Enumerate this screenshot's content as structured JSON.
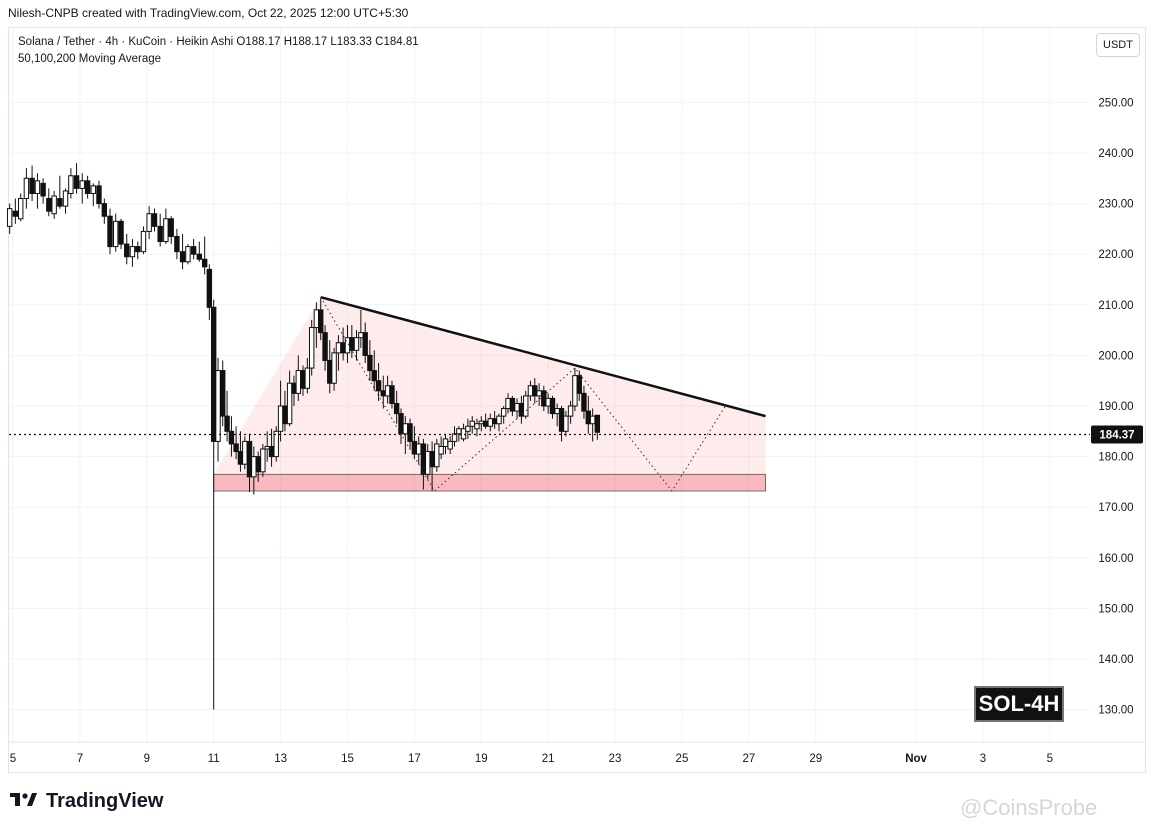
{
  "header": {
    "created_by": "Nilesh-CNPB created with TradingView.com, Oct 22, 2025 12:00 UTC+5:30"
  },
  "legend": {
    "line1": "Solana / Tether · 4h · KuCoin · Heikin Ashi  O188.17  H188.17  L183.33  C184.81",
    "line2": "50,100,200 Moving Average"
  },
  "currency_button": "USDT",
  "badge": "SOL-4H",
  "brand": "TradingView",
  "watermark": "@CoinsProbe",
  "chart_data": {
    "type": "candlestick",
    "symbol": "Solana / Tether",
    "interval": "4h",
    "exchange": "KuCoin",
    "candle_style": "Heikin Ashi",
    "ohlc": {
      "open": 188.17,
      "high": 188.17,
      "low": 183.33,
      "close": 184.81
    },
    "last_price": 184.37,
    "last_price_label": "184.37",
    "y_ticks": [
      "130.00",
      "140.00",
      "150.00",
      "160.00",
      "170.00",
      "180.00",
      "190.00",
      "200.00",
      "210.00",
      "220.00",
      "230.00",
      "240.00",
      "250.00"
    ],
    "y_tick_values": [
      130,
      140,
      150,
      160,
      170,
      180,
      190,
      200,
      210,
      220,
      230,
      240,
      250
    ],
    "ylim": [
      123.6,
      264.7
    ],
    "x_ticks": [
      "5",
      "7",
      "9",
      "11",
      "13",
      "15",
      "17",
      "19",
      "21",
      "23",
      "25",
      "27",
      "29",
      "Nov",
      "3",
      "5"
    ],
    "x_tick_days": [
      5,
      7,
      9,
      11,
      13,
      15,
      17,
      19,
      21,
      23,
      25,
      27,
      29,
      32,
      34,
      36
    ],
    "xlim_days": [
      4.88,
      37.2
    ],
    "grid": true,
    "descending_triangle": {
      "resistance_start": {
        "day": 14.2,
        "price": 211.5
      },
      "resistance_end": {
        "day": 27.5,
        "price": 188.0
      },
      "support_zone": {
        "day_start": 11.0,
        "day_end": 27.5,
        "price_top": 176.5,
        "price_bottom": 173.2
      },
      "left_edge": {
        "day": 11.0,
        "price": 176.5
      }
    },
    "projection_path": [
      {
        "day": 14.2,
        "price": 211.5
      },
      {
        "day": 17.6,
        "price": 173.2
      },
      {
        "day": 21.8,
        "price": 197.5
      },
      {
        "day": 24.7,
        "price": 173.2
      },
      {
        "day": 26.3,
        "price": 190.0
      }
    ],
    "candles": [
      {
        "t": 4.9,
        "o": 225.5,
        "h": 230.0,
        "l": 224.0,
        "c": 229.0
      },
      {
        "t": 5.07,
        "o": 228.5,
        "h": 231.0,
        "l": 226.0,
        "c": 227.5
      },
      {
        "t": 5.23,
        "o": 227.0,
        "h": 232.0,
        "l": 226.5,
        "c": 231.0
      },
      {
        "t": 5.4,
        "o": 231.0,
        "h": 237.0,
        "l": 229.0,
        "c": 235.0
      },
      {
        "t": 5.57,
        "o": 235.0,
        "h": 237.5,
        "l": 230.5,
        "c": 232.0
      },
      {
        "t": 5.73,
        "o": 232.0,
        "h": 236.0,
        "l": 229.0,
        "c": 234.5
      },
      {
        "t": 5.9,
        "o": 234.0,
        "h": 235.0,
        "l": 230.0,
        "c": 231.5
      },
      {
        "t": 6.07,
        "o": 231.0,
        "h": 233.0,
        "l": 227.5,
        "c": 228.5
      },
      {
        "t": 6.23,
        "o": 228.0,
        "h": 232.5,
        "l": 227.0,
        "c": 231.5
      },
      {
        "t": 6.4,
        "o": 231.0,
        "h": 235.5,
        "l": 229.0,
        "c": 229.5
      },
      {
        "t": 6.57,
        "o": 229.5,
        "h": 233.0,
        "l": 228.0,
        "c": 232.5
      },
      {
        "t": 6.73,
        "o": 232.0,
        "h": 237.0,
        "l": 231.0,
        "c": 235.5
      },
      {
        "t": 6.9,
        "o": 235.5,
        "h": 238.0,
        "l": 232.0,
        "c": 233.0
      },
      {
        "t": 7.07,
        "o": 233.0,
        "h": 236.0,
        "l": 230.0,
        "c": 234.5
      },
      {
        "t": 7.23,
        "o": 234.5,
        "h": 235.5,
        "l": 231.0,
        "c": 232.0
      },
      {
        "t": 7.4,
        "o": 232.0,
        "h": 234.0,
        "l": 229.5,
        "c": 233.5
      },
      {
        "t": 7.57,
        "o": 233.5,
        "h": 234.5,
        "l": 229.0,
        "c": 230.0
      },
      {
        "t": 7.73,
        "o": 230.0,
        "h": 231.0,
        "l": 226.0,
        "c": 227.5
      },
      {
        "t": 7.9,
        "o": 227.5,
        "h": 229.0,
        "l": 220.0,
        "c": 221.5
      },
      {
        "t": 8.07,
        "o": 221.5,
        "h": 228.0,
        "l": 220.5,
        "c": 226.5
      },
      {
        "t": 8.23,
        "o": 226.5,
        "h": 227.0,
        "l": 221.0,
        "c": 222.0
      },
      {
        "t": 8.4,
        "o": 222.0,
        "h": 224.0,
        "l": 218.0,
        "c": 219.5
      },
      {
        "t": 8.57,
        "o": 219.5,
        "h": 223.0,
        "l": 217.5,
        "c": 221.5
      },
      {
        "t": 8.73,
        "o": 221.5,
        "h": 222.5,
        "l": 219.0,
        "c": 220.5
      },
      {
        "t": 8.9,
        "o": 220.5,
        "h": 225.5,
        "l": 220.0,
        "c": 224.5
      },
      {
        "t": 9.07,
        "o": 224.5,
        "h": 229.5,
        "l": 223.0,
        "c": 228.0
      },
      {
        "t": 9.23,
        "o": 228.0,
        "h": 229.0,
        "l": 224.5,
        "c": 225.5
      },
      {
        "t": 9.4,
        "o": 225.5,
        "h": 228.0,
        "l": 221.5,
        "c": 222.5
      },
      {
        "t": 9.57,
        "o": 222.5,
        "h": 229.0,
        "l": 222.0,
        "c": 227.0
      },
      {
        "t": 9.73,
        "o": 227.0,
        "h": 227.5,
        "l": 222.0,
        "c": 223.5
      },
      {
        "t": 9.9,
        "o": 223.5,
        "h": 225.0,
        "l": 219.0,
        "c": 220.5
      },
      {
        "t": 10.07,
        "o": 220.5,
        "h": 224.0,
        "l": 217.0,
        "c": 218.5
      },
      {
        "t": 10.23,
        "o": 218.5,
        "h": 222.0,
        "l": 218.0,
        "c": 221.5
      },
      {
        "t": 10.4,
        "o": 221.5,
        "h": 223.0,
        "l": 219.0,
        "c": 220.0
      },
      {
        "t": 10.57,
        "o": 220.0,
        "h": 222.5,
        "l": 218.5,
        "c": 219.0
      },
      {
        "t": 10.73,
        "o": 219.0,
        "h": 223.5,
        "l": 216.0,
        "c": 217.5
      },
      {
        "t": 10.87,
        "o": 217.0,
        "h": 218.0,
        "l": 207.0,
        "c": 209.5
      },
      {
        "t": 11.0,
        "o": 209.5,
        "h": 211.0,
        "l": 130.0,
        "c": 183.0
      },
      {
        "t": 11.13,
        "o": 183.0,
        "h": 199.5,
        "l": 179.0,
        "c": 197.0
      },
      {
        "t": 11.27,
        "o": 197.0,
        "h": 199.0,
        "l": 186.0,
        "c": 188.0
      },
      {
        "t": 11.4,
        "o": 188.0,
        "h": 193.0,
        "l": 183.0,
        "c": 185.0
      },
      {
        "t": 11.53,
        "o": 185.0,
        "h": 188.0,
        "l": 180.0,
        "c": 182.5
      },
      {
        "t": 11.67,
        "o": 182.5,
        "h": 186.0,
        "l": 179.5,
        "c": 181.0
      },
      {
        "t": 11.8,
        "o": 181.0,
        "h": 185.0,
        "l": 177.0,
        "c": 178.5
      },
      {
        "t": 11.93,
        "o": 178.5,
        "h": 184.0,
        "l": 177.5,
        "c": 183.0
      },
      {
        "t": 12.07,
        "o": 183.0,
        "h": 184.5,
        "l": 173.0,
        "c": 176.0
      },
      {
        "t": 12.2,
        "o": 176.0,
        "h": 182.0,
        "l": 172.5,
        "c": 180.0
      },
      {
        "t": 12.33,
        "o": 180.0,
        "h": 181.0,
        "l": 175.0,
        "c": 177.0
      },
      {
        "t": 12.47,
        "o": 177.0,
        "h": 182.5,
        "l": 176.0,
        "c": 181.5
      },
      {
        "t": 12.6,
        "o": 181.5,
        "h": 185.0,
        "l": 179.0,
        "c": 182.0
      },
      {
        "t": 12.73,
        "o": 182.0,
        "h": 185.5,
        "l": 178.0,
        "c": 180.0
      },
      {
        "t": 12.87,
        "o": 180.0,
        "h": 186.0,
        "l": 179.0,
        "c": 185.0
      },
      {
        "t": 13.0,
        "o": 185.0,
        "h": 195.0,
        "l": 183.0,
        "c": 190.0
      },
      {
        "t": 13.13,
        "o": 190.0,
        "h": 193.0,
        "l": 185.0,
        "c": 186.5
      },
      {
        "t": 13.27,
        "o": 186.5,
        "h": 197.0,
        "l": 186.0,
        "c": 194.5
      },
      {
        "t": 13.4,
        "o": 194.5,
        "h": 196.0,
        "l": 190.0,
        "c": 192.5
      },
      {
        "t": 13.53,
        "o": 192.5,
        "h": 200.0,
        "l": 191.0,
        "c": 197.0
      },
      {
        "t": 13.67,
        "o": 197.0,
        "h": 198.0,
        "l": 192.0,
        "c": 193.5
      },
      {
        "t": 13.8,
        "o": 193.5,
        "h": 199.5,
        "l": 192.5,
        "c": 197.5
      },
      {
        "t": 13.93,
        "o": 197.5,
        "h": 207.0,
        "l": 196.0,
        "c": 205.5
      },
      {
        "t": 14.07,
        "o": 205.5,
        "h": 210.5,
        "l": 201.5,
        "c": 209.0
      },
      {
        "t": 14.2,
        "o": 209.0,
        "h": 211.5,
        "l": 203.0,
        "c": 204.5
      },
      {
        "t": 14.33,
        "o": 204.5,
        "h": 206.0,
        "l": 197.0,
        "c": 199.0
      },
      {
        "t": 14.47,
        "o": 199.0,
        "h": 203.0,
        "l": 192.5,
        "c": 194.5
      },
      {
        "t": 14.6,
        "o": 194.5,
        "h": 201.5,
        "l": 193.0,
        "c": 200.5
      },
      {
        "t": 14.73,
        "o": 200.5,
        "h": 204.0,
        "l": 197.0,
        "c": 202.5
      },
      {
        "t": 14.87,
        "o": 202.5,
        "h": 205.5,
        "l": 199.0,
        "c": 200.5
      },
      {
        "t": 15.0,
        "o": 200.5,
        "h": 206.0,
        "l": 198.5,
        "c": 203.5
      },
      {
        "t": 15.13,
        "o": 203.5,
        "h": 206.0,
        "l": 199.5,
        "c": 201.0
      },
      {
        "t": 15.27,
        "o": 201.0,
        "h": 205.0,
        "l": 199.0,
        "c": 203.5
      },
      {
        "t": 15.4,
        "o": 203.5,
        "h": 209.0,
        "l": 201.5,
        "c": 204.5
      },
      {
        "t": 15.53,
        "o": 204.5,
        "h": 206.5,
        "l": 198.5,
        "c": 200.0
      },
      {
        "t": 15.67,
        "o": 200.0,
        "h": 203.0,
        "l": 195.0,
        "c": 197.0
      },
      {
        "t": 15.8,
        "o": 197.0,
        "h": 201.0,
        "l": 193.0,
        "c": 195.0
      },
      {
        "t": 15.93,
        "o": 195.0,
        "h": 198.5,
        "l": 191.0,
        "c": 193.0
      },
      {
        "t": 16.07,
        "o": 193.0,
        "h": 196.0,
        "l": 189.5,
        "c": 192.0
      },
      {
        "t": 16.2,
        "o": 192.0,
        "h": 196.0,
        "l": 190.5,
        "c": 194.0
      },
      {
        "t": 16.33,
        "o": 194.0,
        "h": 195.0,
        "l": 189.5,
        "c": 190.5
      },
      {
        "t": 16.47,
        "o": 190.5,
        "h": 193.0,
        "l": 186.5,
        "c": 188.5
      },
      {
        "t": 16.6,
        "o": 188.5,
        "h": 189.5,
        "l": 182.5,
        "c": 184.5
      },
      {
        "t": 16.73,
        "o": 184.5,
        "h": 188.0,
        "l": 180.5,
        "c": 186.5
      },
      {
        "t": 16.87,
        "o": 186.5,
        "h": 187.5,
        "l": 181.5,
        "c": 183.0
      },
      {
        "t": 17.0,
        "o": 183.0,
        "h": 186.0,
        "l": 179.5,
        "c": 180.5
      },
      {
        "t": 17.13,
        "o": 180.5,
        "h": 184.0,
        "l": 178.5,
        "c": 182.5
      },
      {
        "t": 17.27,
        "o": 182.5,
        "h": 183.5,
        "l": 173.5,
        "c": 176.5
      },
      {
        "t": 17.4,
        "o": 176.5,
        "h": 182.5,
        "l": 175.5,
        "c": 181.0
      },
      {
        "t": 17.53,
        "o": 181.0,
        "h": 183.0,
        "l": 173.2,
        "c": 178.0
      },
      {
        "t": 17.67,
        "o": 178.0,
        "h": 183.5,
        "l": 177.0,
        "c": 182.5
      },
      {
        "t": 17.8,
        "o": 180.5,
        "h": 184.0,
        "l": 179.5,
        "c": 182.0
      },
      {
        "t": 17.93,
        "o": 182.0,
        "h": 184.5,
        "l": 180.5,
        "c": 183.5
      },
      {
        "t": 18.07,
        "o": 181.5,
        "h": 184.0,
        "l": 180.5,
        "c": 183.0
      },
      {
        "t": 18.2,
        "o": 183.0,
        "h": 186.0,
        "l": 182.0,
        "c": 184.5
      },
      {
        "t": 18.33,
        "o": 184.5,
        "h": 186.0,
        "l": 183.0,
        "c": 185.5
      },
      {
        "t": 18.47,
        "o": 183.5,
        "h": 186.5,
        "l": 183.0,
        "c": 185.5
      },
      {
        "t": 18.6,
        "o": 185.0,
        "h": 187.5,
        "l": 183.5,
        "c": 186.0
      },
      {
        "t": 18.73,
        "o": 186.0,
        "h": 188.0,
        "l": 184.5,
        "c": 187.0
      },
      {
        "t": 18.87,
        "o": 185.5,
        "h": 187.5,
        "l": 184.0,
        "c": 186.5
      },
      {
        "t": 19.0,
        "o": 186.5,
        "h": 188.0,
        "l": 185.0,
        "c": 187.0
      },
      {
        "t": 19.13,
        "o": 187.0,
        "h": 188.5,
        "l": 185.5,
        "c": 186.0
      },
      {
        "t": 19.27,
        "o": 186.0,
        "h": 188.5,
        "l": 185.0,
        "c": 187.5
      },
      {
        "t": 19.4,
        "o": 187.5,
        "h": 189.0,
        "l": 185.5,
        "c": 186.5
      },
      {
        "t": 19.53,
        "o": 186.5,
        "h": 188.5,
        "l": 185.0,
        "c": 188.0
      },
      {
        "t": 19.67,
        "o": 188.0,
        "h": 190.0,
        "l": 186.5,
        "c": 189.5
      },
      {
        "t": 19.8,
        "o": 189.5,
        "h": 192.5,
        "l": 188.5,
        "c": 191.5
      },
      {
        "t": 19.93,
        "o": 191.5,
        "h": 192.0,
        "l": 188.0,
        "c": 189.0
      },
      {
        "t": 20.07,
        "o": 189.0,
        "h": 191.5,
        "l": 187.5,
        "c": 190.5
      },
      {
        "t": 20.2,
        "o": 190.5,
        "h": 192.0,
        "l": 186.5,
        "c": 188.0
      },
      {
        "t": 20.33,
        "o": 188.0,
        "h": 193.0,
        "l": 187.5,
        "c": 192.0
      },
      {
        "t": 20.47,
        "o": 192.0,
        "h": 195.0,
        "l": 191.0,
        "c": 194.0
      },
      {
        "t": 20.6,
        "o": 194.0,
        "h": 195.5,
        "l": 190.5,
        "c": 192.0
      },
      {
        "t": 20.73,
        "o": 192.0,
        "h": 194.5,
        "l": 190.0,
        "c": 193.0
      },
      {
        "t": 20.87,
        "o": 193.0,
        "h": 194.0,
        "l": 189.0,
        "c": 190.0
      },
      {
        "t": 21.0,
        "o": 190.0,
        "h": 192.5,
        "l": 188.5,
        "c": 191.5
      },
      {
        "t": 21.13,
        "o": 191.5,
        "h": 192.0,
        "l": 187.5,
        "c": 188.5
      },
      {
        "t": 21.27,
        "o": 188.5,
        "h": 190.5,
        "l": 186.0,
        "c": 189.5
      },
      {
        "t": 21.4,
        "o": 189.5,
        "h": 190.0,
        "l": 183.0,
        "c": 185.0
      },
      {
        "t": 21.53,
        "o": 185.0,
        "h": 189.0,
        "l": 184.0,
        "c": 188.0
      },
      {
        "t": 21.67,
        "o": 188.0,
        "h": 191.0,
        "l": 186.5,
        "c": 190.0
      },
      {
        "t": 21.8,
        "o": 190.0,
        "h": 197.5,
        "l": 189.0,
        "c": 196.0
      },
      {
        "t": 21.93,
        "o": 196.0,
        "h": 197.0,
        "l": 191.0,
        "c": 192.5
      },
      {
        "t": 22.07,
        "o": 192.5,
        "h": 194.0,
        "l": 187.5,
        "c": 189.0
      },
      {
        "t": 22.2,
        "o": 189.0,
        "h": 192.0,
        "l": 184.5,
        "c": 186.5
      },
      {
        "t": 22.33,
        "o": 186.5,
        "h": 189.5,
        "l": 183.0,
        "c": 188.0
      },
      {
        "t": 22.47,
        "o": 188.17,
        "h": 188.17,
        "l": 183.33,
        "c": 184.81
      }
    ]
  }
}
